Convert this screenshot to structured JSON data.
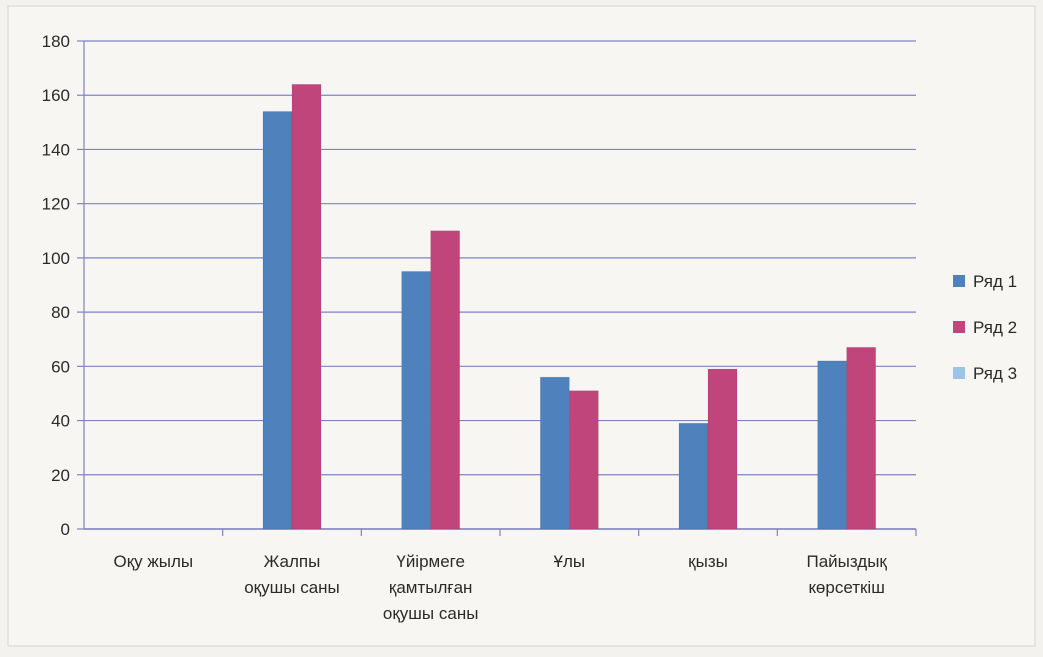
{
  "chart_data": {
    "type": "bar",
    "title": "",
    "xlabel": "",
    "ylabel": "",
    "ylim": [
      0,
      180
    ],
    "yticks": [
      0,
      20,
      40,
      60,
      80,
      100,
      120,
      140,
      160,
      180
    ],
    "grid": true,
    "legend_position": "right",
    "categories": [
      [
        "Оқу жылы"
      ],
      [
        "Жалпы",
        "оқушы саны"
      ],
      [
        "Үйірмеге",
        "қамтылған",
        "оқушы саны"
      ],
      [
        "Ұлы"
      ],
      [
        "қызы"
      ],
      [
        "Пайыздық",
        "көрсеткіш"
      ]
    ],
    "series": [
      {
        "name": "Ряд 1",
        "color": "#4f81bd",
        "values": [
          0,
          154,
          95,
          56,
          39,
          62
        ]
      },
      {
        "name": "Ряд 2",
        "color": "#c0457a",
        "values": [
          0,
          164,
          110,
          51,
          59,
          67
        ]
      },
      {
        "name": "Ряд 3",
        "color": "#9dc3e6",
        "values": [
          0,
          0,
          0,
          0,
          0,
          0
        ]
      }
    ]
  }
}
